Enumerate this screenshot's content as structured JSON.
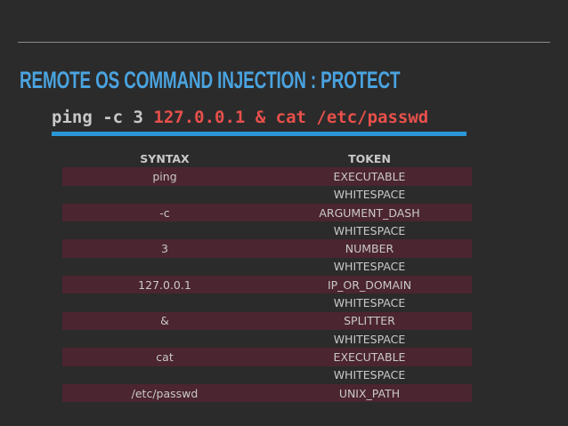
{
  "slide": {
    "title": "REMOTE OS COMMAND INJECTION : PROTECT",
    "command": {
      "plain": "ping -c 3 ",
      "injected": "127.0.0.1 & cat /etc/passwd"
    }
  },
  "table": {
    "headers": {
      "syntax": "SYNTAX",
      "token": "TOKEN"
    },
    "rows": [
      {
        "syntax": "ping",
        "token": "EXECUTABLE"
      },
      {
        "syntax": "",
        "token": "WHITESPACE"
      },
      {
        "syntax": "-c",
        "token": "ARGUMENT_DASH"
      },
      {
        "syntax": "",
        "token": "WHITESPACE"
      },
      {
        "syntax": "3",
        "token": "NUMBER"
      },
      {
        "syntax": "",
        "token": "WHITESPACE"
      },
      {
        "syntax": "127.0.0.1",
        "token": "IP_OR_DOMAIN"
      },
      {
        "syntax": "",
        "token": "WHITESPACE"
      },
      {
        "syntax": "&",
        "token": "SPLITTER"
      },
      {
        "syntax": "",
        "token": "WHITESPACE"
      },
      {
        "syntax": "cat",
        "token": "EXECUTABLE"
      },
      {
        "syntax": "",
        "token": "WHITESPACE"
      },
      {
        "syntax": "/etc/passwd",
        "token": "UNIX_PATH"
      }
    ]
  },
  "colors": {
    "background": "#2b2b2b",
    "title": "#4aa3df",
    "injected_text": "#e8504b",
    "underline": "#2b96d8",
    "shaded_row": "#4b2530"
  }
}
